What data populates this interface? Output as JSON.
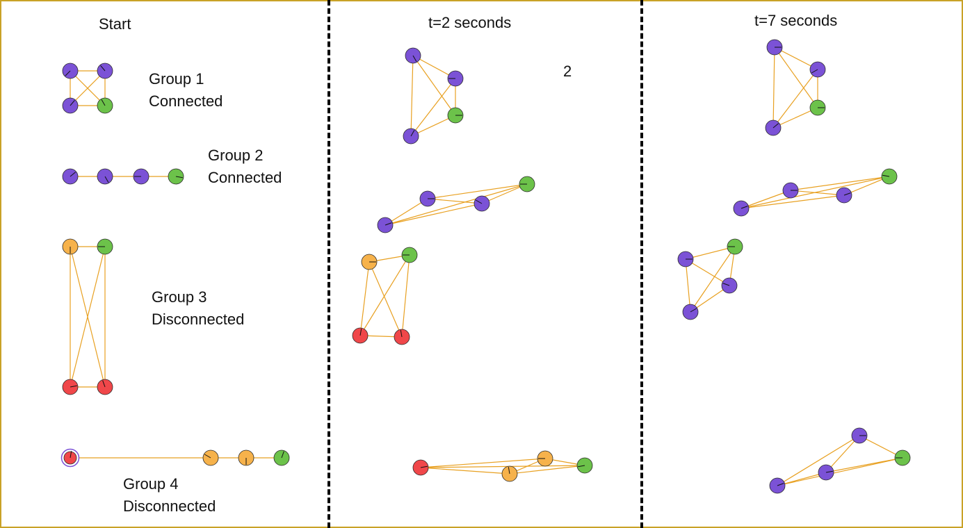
{
  "panels": [
    {
      "title": "Start"
    },
    {
      "title": "t=2 seconds",
      "marker": "2"
    },
    {
      "title": "t=7 seconds"
    }
  ],
  "groups": [
    {
      "name": "Group 1",
      "status": "Connected"
    },
    {
      "name": "Group 2",
      "status": "Connected"
    },
    {
      "name": "Group 3",
      "status": "Disconnected"
    },
    {
      "name": "Group 4",
      "status": "Disconnected"
    }
  ],
  "colors": {
    "frame": "#c9a227",
    "edge": "#e8a020",
    "purple": "#7b52d6",
    "green": "#6cc24a",
    "orange": "#f6b24b",
    "red": "#f0474a"
  }
}
